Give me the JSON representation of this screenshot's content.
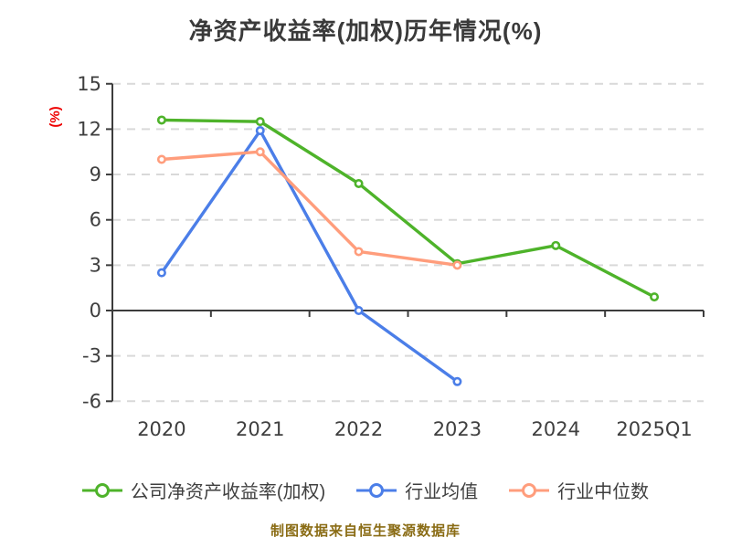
{
  "title": "净资产收益率(加权)历年情况(%)",
  "y_axis_label": "(%)",
  "footer": "制图数据来自恒生聚源数据库",
  "colors": {
    "title_text": "#3a3a3a",
    "tick_text": "#3f3f3f",
    "axis_line": "#3c3c3c",
    "gridline": "#d9d9d9",
    "y_unit_label": "#ee0000",
    "footer_text": "#8a6c15",
    "marker_fill": "#ffffff",
    "series_green": "#4eb32a",
    "series_blue": "#4b7ee8",
    "series_orange": "#ff9d7c"
  },
  "chart_data": {
    "type": "line",
    "title": "净资产收益率(加权)历年情况(%)",
    "xlabel": "",
    "ylabel": "(%)",
    "categories": [
      "2020",
      "2021",
      "2022",
      "2023",
      "2024",
      "2025Q1"
    ],
    "yticks": [
      15,
      12,
      9,
      6,
      3,
      0,
      -3,
      -6
    ],
    "ylim": [
      -6,
      15
    ],
    "grid": "horizontal-dashed",
    "legend_position": "bottom",
    "marker": "circle-white-fill",
    "series": [
      {
        "name": "公司净资产收益率(加权)",
        "color": "#4eb32a",
        "values": [
          12.6,
          12.5,
          8.4,
          3.1,
          4.3,
          0.9
        ]
      },
      {
        "name": "行业均值",
        "color": "#4b7ee8",
        "values": [
          2.5,
          11.9,
          0.0,
          -4.7,
          null,
          null
        ]
      },
      {
        "name": "行业中位数",
        "color": "#ff9d7c",
        "values": [
          10.0,
          10.5,
          3.9,
          3.0,
          null,
          null
        ]
      }
    ]
  }
}
